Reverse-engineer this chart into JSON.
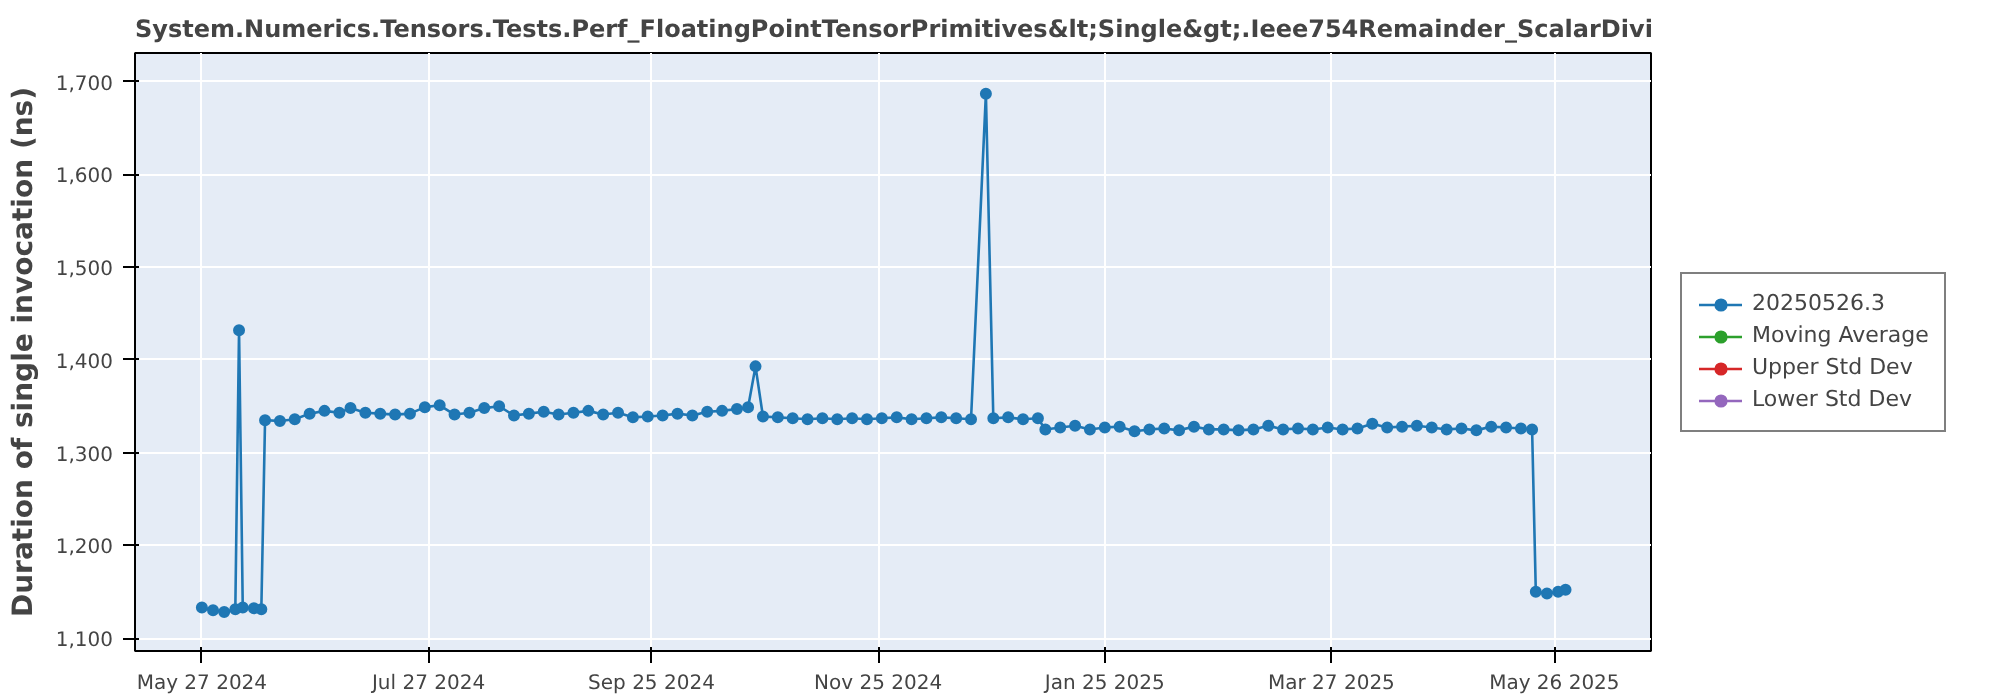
{
  "chart_data": {
    "type": "line",
    "title": "System.Numerics.Tensors.Tests.Perf_FloatingPointTensorPrimitives&lt;Single&gt;.Ieee754Remainder_ScalarDivi",
    "ylabel": "Duration of single invocation (ns)",
    "x": [
      "2024-05-27",
      "2024-05-30",
      "2024-06-02",
      "2024-06-05",
      "2024-06-06",
      "2024-06-07",
      "2024-06-10",
      "2024-06-12",
      "2024-06-13",
      "2024-06-17",
      "2024-06-21",
      "2024-06-25",
      "2024-06-29",
      "2024-07-03",
      "2024-07-06",
      "2024-07-10",
      "2024-07-14",
      "2024-07-18",
      "2024-07-22",
      "2024-07-26",
      "2024-07-30",
      "2024-08-03",
      "2024-08-07",
      "2024-08-11",
      "2024-08-15",
      "2024-08-19",
      "2024-08-23",
      "2024-08-27",
      "2024-08-31",
      "2024-09-04",
      "2024-09-08",
      "2024-09-12",
      "2024-09-16",
      "2024-09-20",
      "2024-09-24",
      "2024-09-28",
      "2024-10-02",
      "2024-10-06",
      "2024-10-10",
      "2024-10-14",
      "2024-10-18",
      "2024-10-21",
      "2024-10-23",
      "2024-10-25",
      "2024-10-29",
      "2024-11-02",
      "2024-11-06",
      "2024-11-10",
      "2024-11-14",
      "2024-11-18",
      "2024-11-22",
      "2024-11-26",
      "2024-11-30",
      "2024-12-04",
      "2024-12-08",
      "2024-12-12",
      "2024-12-16",
      "2024-12-20",
      "2024-12-24",
      "2024-12-26",
      "2024-12-30",
      "2025-01-03",
      "2025-01-07",
      "2025-01-09",
      "2025-01-13",
      "2025-01-17",
      "2025-01-21",
      "2025-01-25",
      "2025-01-29",
      "2025-02-02",
      "2025-02-06",
      "2025-02-10",
      "2025-02-14",
      "2025-02-18",
      "2025-02-22",
      "2025-02-26",
      "2025-03-02",
      "2025-03-06",
      "2025-03-10",
      "2025-03-14",
      "2025-03-18",
      "2025-03-22",
      "2025-03-26",
      "2025-03-30",
      "2025-04-03",
      "2025-04-07",
      "2025-04-11",
      "2025-04-15",
      "2025-04-19",
      "2025-04-23",
      "2025-04-27",
      "2025-05-01",
      "2025-05-05",
      "2025-05-09",
      "2025-05-13",
      "2025-05-17",
      "2025-05-20",
      "2025-05-21",
      "2025-05-24",
      "2025-05-27",
      "2025-05-29"
    ],
    "series": [
      {
        "name": "20250526.3",
        "color": "#1f77b4",
        "values": [
          1133,
          1130,
          1128,
          1131,
          1432,
          1133,
          1132,
          1131,
          1335,
          1334,
          1336,
          1342,
          1345,
          1343,
          1348,
          1343,
          1342,
          1341,
          1342,
          1349,
          1351,
          1341,
          1343,
          1348,
          1350,
          1340,
          1342,
          1344,
          1341,
          1343,
          1345,
          1341,
          1343,
          1338,
          1339,
          1340,
          1342,
          1340,
          1344,
          1345,
          1347,
          1349,
          1393,
          1339,
          1338,
          1337,
          1336,
          1337,
          1336,
          1337,
          1336,
          1337,
          1338,
          1336,
          1337,
          1338,
          1337,
          1336,
          1687,
          1337,
          1338,
          1336,
          1337,
          1325,
          1327,
          1329,
          1325,
          1327,
          1328,
          1323,
          1325,
          1326,
          1324,
          1328,
          1325,
          1325,
          1324,
          1325,
          1329,
          1325,
          1326,
          1325,
          1327,
          1325,
          1326,
          1331,
          1327,
          1328,
          1329,
          1327,
          1325,
          1326,
          1324,
          1328,
          1327,
          1326,
          1325,
          1150,
          1148,
          1150,
          1152
        ]
      },
      {
        "name": "Moving Average",
        "color": "#2ca02c",
        "values": [
          null,
          null,
          null,
          null,
          null,
          null,
          null,
          null,
          null,
          null,
          null,
          null,
          null,
          null,
          null,
          null,
          null,
          null,
          null,
          null,
          null,
          null,
          null,
          null,
          null,
          null,
          null,
          null,
          null,
          null,
          null,
          null,
          null,
          null,
          null,
          null,
          null,
          null,
          null,
          null,
          null,
          null,
          null,
          null,
          null,
          null,
          null,
          null,
          null,
          null,
          null,
          null,
          null,
          null,
          null,
          null,
          null,
          null,
          null,
          null,
          null,
          null,
          null,
          null,
          null,
          null,
          null,
          null,
          null,
          null,
          null,
          null,
          null,
          null,
          null,
          null,
          null,
          null,
          null,
          null,
          null,
          null,
          null,
          null,
          null,
          null,
          null,
          null,
          null,
          null,
          null,
          null,
          null,
          null,
          null,
          null,
          null,
          null,
          null,
          null,
          null
        ]
      },
      {
        "name": "Upper Std Dev",
        "color": "#d62728",
        "values": [
          null,
          null,
          null,
          null,
          null,
          null,
          null,
          null,
          null,
          null,
          null,
          null,
          null,
          null,
          null,
          null,
          null,
          null,
          null,
          null,
          null,
          null,
          null,
          null,
          null,
          null,
          null,
          null,
          null,
          null,
          null,
          null,
          null,
          null,
          null,
          null,
          null,
          null,
          null,
          null,
          null,
          null,
          null,
          null,
          null,
          null,
          null,
          null,
          null,
          null,
          null,
          null,
          null,
          null,
          null,
          null,
          null,
          null,
          null,
          null,
          null,
          null,
          null,
          null,
          null,
          null,
          null,
          null,
          null,
          null,
          null,
          null,
          null,
          null,
          null,
          null,
          null,
          null,
          null,
          null,
          null,
          null,
          null,
          null,
          null,
          null,
          null,
          null,
          null,
          null,
          null,
          null,
          null,
          null,
          null,
          null,
          null,
          null,
          null,
          null,
          null
        ]
      },
      {
        "name": "Lower Std Dev",
        "color": "#9467bd",
        "values": [
          null,
          null,
          null,
          null,
          null,
          null,
          null,
          null,
          null,
          null,
          null,
          null,
          null,
          null,
          null,
          null,
          null,
          null,
          null,
          null,
          null,
          null,
          null,
          null,
          null,
          null,
          null,
          null,
          null,
          null,
          null,
          null,
          null,
          null,
          null,
          null,
          null,
          null,
          null,
          null,
          null,
          null,
          null,
          null,
          null,
          null,
          null,
          null,
          null,
          null,
          null,
          null,
          null,
          null,
          null,
          null,
          null,
          null,
          null,
          null,
          null,
          null,
          null,
          null,
          null,
          null,
          null,
          null,
          null,
          null,
          null,
          null,
          null,
          null,
          null,
          null,
          null,
          null,
          null,
          null,
          null,
          null,
          null,
          null,
          null,
          null,
          null,
          null,
          null,
          null,
          null,
          null,
          null,
          null,
          null,
          null,
          null,
          null,
          null,
          null,
          null
        ]
      }
    ],
    "xlim": [
      "2024-05-09",
      "2025-06-21"
    ],
    "xticks": [
      {
        "value": "2024-05-27",
        "label": "May 27 2024"
      },
      {
        "value": "2024-07-27",
        "label": "Jul 27 2024"
      },
      {
        "value": "2024-09-25",
        "label": "Sep 25 2024"
      },
      {
        "value": "2024-11-25",
        "label": "Nov 25 2024"
      },
      {
        "value": "2025-01-25",
        "label": "Jan 25 2025"
      },
      {
        "value": "2025-03-27",
        "label": "Mar 27 2025"
      },
      {
        "value": "2025-05-26",
        "label": "May 26 2025"
      }
    ],
    "ylim": [
      1086,
      1731
    ],
    "yticks": [
      {
        "value": 1100,
        "label": "1,100"
      },
      {
        "value": 1200,
        "label": "1,200"
      },
      {
        "value": 1300,
        "label": "1,300"
      },
      {
        "value": 1400,
        "label": "1,400"
      },
      {
        "value": 1500,
        "label": "1,500"
      },
      {
        "value": 1600,
        "label": "1,600"
      },
      {
        "value": 1700,
        "label": "1,700"
      }
    ],
    "grid": true,
    "legend": "right",
    "marker": "circle",
    "line_style": "solid"
  }
}
